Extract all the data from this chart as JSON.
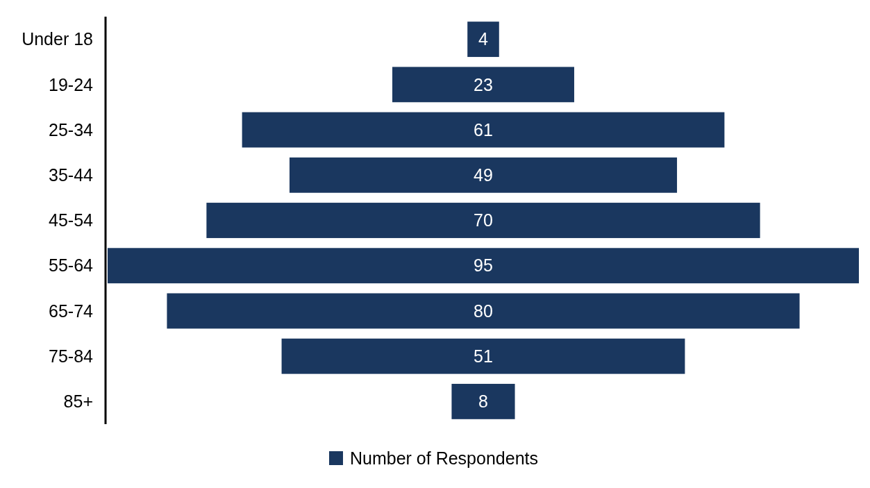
{
  "chart_data": {
    "type": "other",
    "categories": [
      "Under 18",
      "19-24",
      "25-34",
      "35-44",
      "45-54",
      "55-64",
      "65-74",
      "75-84",
      "85+"
    ],
    "series": [
      {
        "name": "Number of Respondents",
        "color": "#1a375f",
        "values": [
          4,
          23,
          61,
          49,
          70,
          95,
          80,
          51,
          8
        ]
      }
    ],
    "data_labels": true,
    "legend": "bottom"
  }
}
